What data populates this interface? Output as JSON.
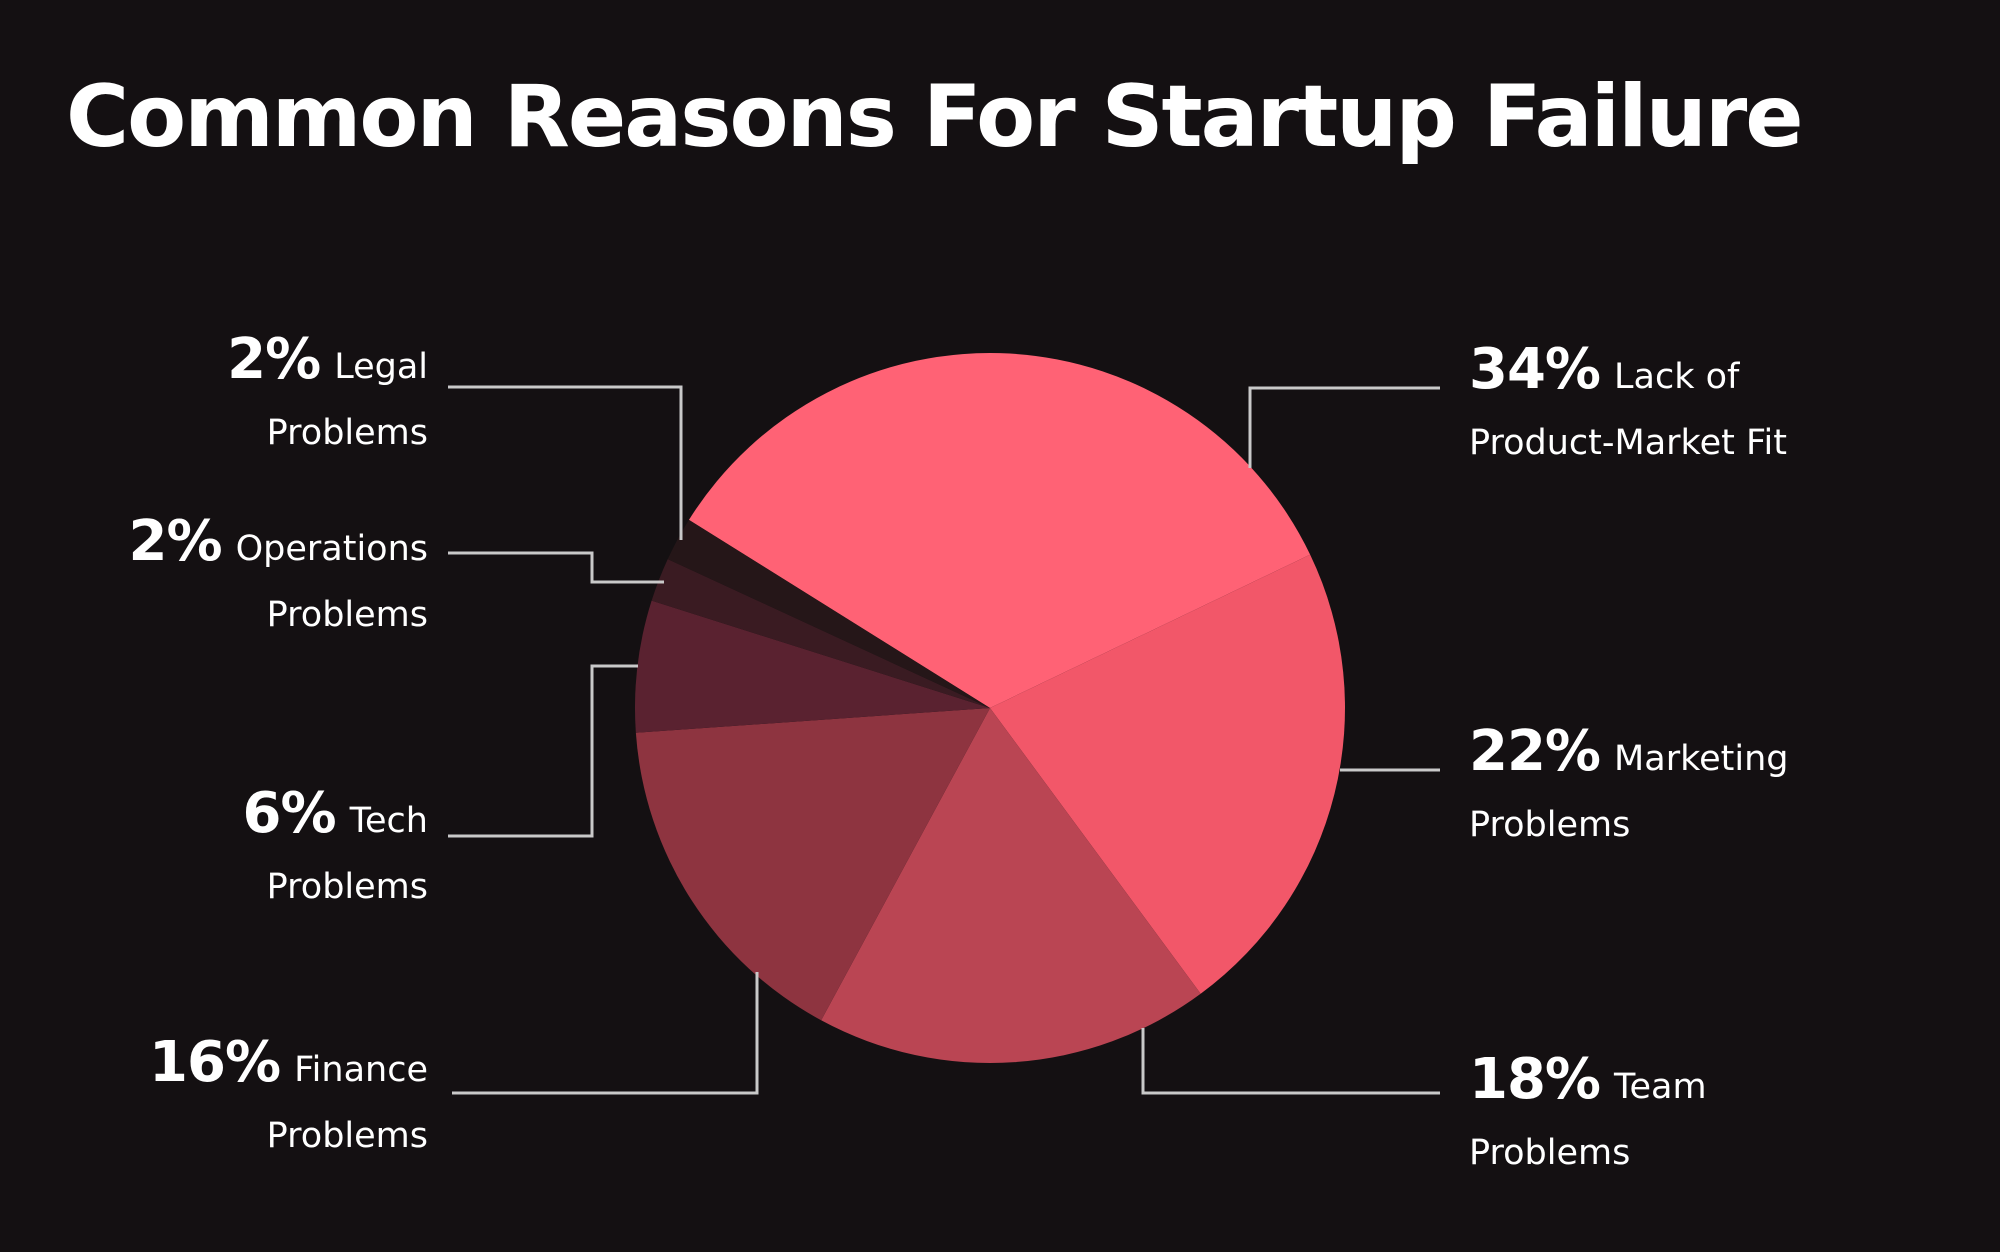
{
  "chart_data": {
    "type": "pie",
    "title": "Common Reasons For Startup Failure",
    "slices": [
      {
        "label_line1": "Lack of",
        "label_line2": "Product-Market Fit",
        "value": 34,
        "value_label": "34%",
        "color": "#ff6275"
      },
      {
        "label_line1": "Marketing",
        "label_line2": "Problems",
        "value": 22,
        "value_label": "22%",
        "color": "#f25769"
      },
      {
        "label_line1": "Team",
        "label_line2": "Problems",
        "value": 18,
        "value_label": "18%",
        "color": "#ba4553"
      },
      {
        "label_line1": "Finance",
        "label_line2": "Problems",
        "value": 16,
        "value_label": "16%",
        "color": "#8e3440"
      },
      {
        "label_line1": "Tech",
        "label_line2": "Problems",
        "value": 6,
        "value_label": "6%",
        "color": "#5a2230"
      },
      {
        "label_line1": "Operations",
        "label_line2": "Problems",
        "value": 2,
        "value_label": "2%",
        "color": "#3a1b22"
      },
      {
        "label_line1": "Legal",
        "label_line2": "Problems",
        "value": 2,
        "value_label": "2%",
        "color": "#251618"
      }
    ],
    "background": "#141012",
    "legend": "none"
  }
}
